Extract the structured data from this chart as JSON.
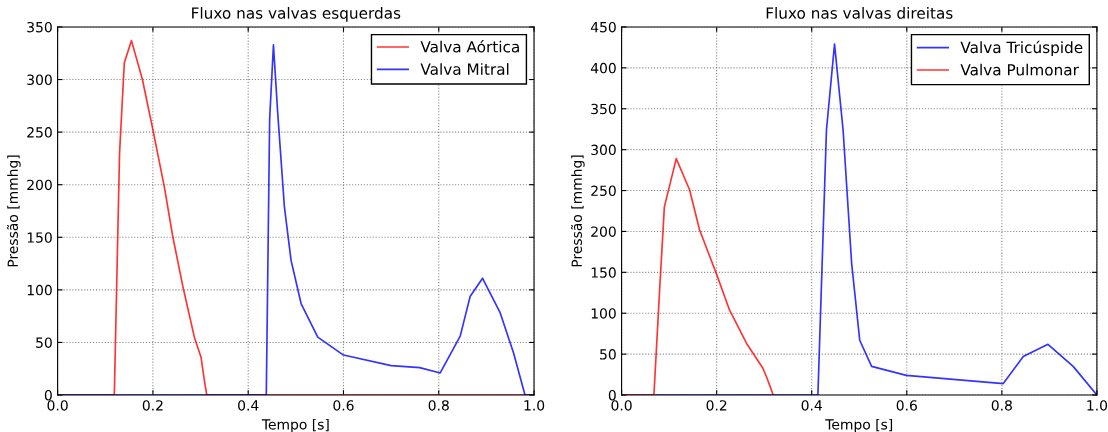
{
  "chart_data": [
    {
      "type": "line",
      "title": "Fluxo nas valvas esquerdas",
      "xlabel": "Tempo [s]",
      "ylabel": "Pressão [mmhg]",
      "xlim": [
        0,
        1
      ],
      "ylim": [
        0,
        350
      ],
      "xticks": [
        {
          "value": 0,
          "label": "0.0"
        },
        {
          "value": 0.2,
          "label": "0.2"
        },
        {
          "value": 0.4,
          "label": "0.4"
        },
        {
          "value": 0.6,
          "label": "0.6"
        },
        {
          "value": 0.8,
          "label": "0.8"
        },
        {
          "value": 1,
          "label": "1.0"
        }
      ],
      "yticks": [
        0,
        50,
        100,
        150,
        200,
        250,
        300,
        350
      ],
      "grid": true,
      "legend": "top right",
      "series": [
        {
          "name": "Valva Aórtica",
          "color": "#ff0000",
          "x": [
            0,
            0.119,
            0.13,
            0.14,
            0.155,
            0.178,
            0.201,
            0.224,
            0.242,
            0.263,
            0.287,
            0.301,
            0.308,
            0.313,
            1
          ],
          "values": [
            0,
            0,
            230,
            316,
            337,
            300,
            250,
            198,
            150,
            103,
            55,
            36,
            14,
            0,
            0
          ]
        },
        {
          "name": "Valva Mitral",
          "color": "#0000ff",
          "x": [
            0,
            0.438,
            0.445,
            0.453,
            0.462,
            0.476,
            0.49,
            0.511,
            0.546,
            0.6,
            0.7,
            0.76,
            0.803,
            0.845,
            0.866,
            0.892,
            0.929,
            0.957,
            0.981,
            1
          ],
          "values": [
            0,
            0,
            262,
            333,
            268,
            179,
            128,
            87,
            55,
            38,
            28,
            26,
            21,
            56,
            94,
            111,
            78,
            40,
            0,
            0
          ]
        }
      ]
    },
    {
      "type": "line",
      "title": "Fluxo nas valvas direitas",
      "xlabel": "Tempo [s]",
      "ylabel": "Pressão [mmhg]",
      "xlim": [
        0,
        1
      ],
      "ylim": [
        0,
        450
      ],
      "xticks": [
        {
          "value": 0,
          "label": "0.0"
        },
        {
          "value": 0.2,
          "label": "0.2"
        },
        {
          "value": 0.4,
          "label": "0.4"
        },
        {
          "value": 0.6,
          "label": "0.6"
        },
        {
          "value": 0.8,
          "label": "0.8"
        },
        {
          "value": 1,
          "label": "1.0"
        }
      ],
      "yticks": [
        0,
        50,
        100,
        150,
        200,
        250,
        300,
        350,
        400,
        450
      ],
      "grid": true,
      "legend": "top right",
      "series": [
        {
          "name": "Valva Tricúspide",
          "color": "#0000ff",
          "x": [
            0,
            0.413,
            0.431,
            0.448,
            0.466,
            0.484,
            0.501,
            0.526,
            0.599,
            0.803,
            0.845,
            0.897,
            0.95,
            1
          ],
          "values": [
            0,
            0,
            324,
            429,
            324,
            161,
            67,
            35,
            24,
            14,
            47,
            62,
            35,
            0
          ]
        },
        {
          "name": "Valva Pulmonar",
          "color": "#ff0000",
          "x": [
            0,
            0.068,
            0.08,
            0.09,
            0.115,
            0.143,
            0.164,
            0.199,
            0.227,
            0.263,
            0.297,
            0.305,
            0.319
          ],
          "values": [
            0,
            0,
            128,
            230,
            289,
            251,
            202,
            149,
            104,
            63,
            33,
            22,
            0
          ]
        }
      ]
    }
  ]
}
